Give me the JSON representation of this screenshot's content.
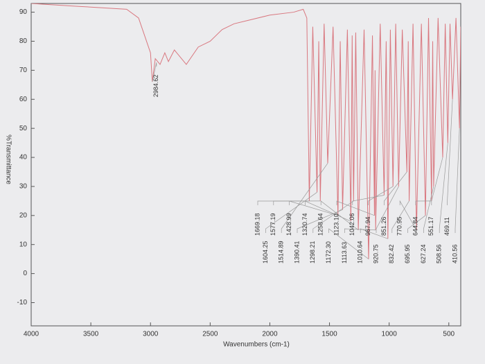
{
  "chart_data": {
    "type": "line",
    "ylabel": "%Transmittance",
    "xlabel": "Wavenumbers (cm-1)",
    "xlim": [
      4000,
      400
    ],
    "ylim": [
      -18,
      93
    ],
    "xticks": [
      4000,
      3500,
      3000,
      2500,
      2000,
      1500,
      1000,
      500
    ],
    "yticks": [
      -10,
      0,
      10,
      20,
      30,
      40,
      50,
      60,
      70,
      80,
      90
    ],
    "grid": false,
    "x": [
      4000,
      3600,
      3200,
      3100,
      3050,
      3000,
      2984.62,
      2960,
      2920,
      2880,
      2850,
      2800,
      2700,
      2600,
      2500,
      2400,
      2300,
      2200,
      2000,
      1800,
      1720,
      1690,
      1669.18,
      1640,
      1604.25,
      1590,
      1577.19,
      1545,
      1514.89,
      1470,
      1428.99,
      1410,
      1390.41,
      1350,
      1320.74,
      1310,
      1298.21,
      1280,
      1258.64,
      1210,
      1172.3,
      1140,
      1123.1,
      1118,
      1113.63,
      1075,
      1042.06,
      1025,
      1010.64,
      990,
      967.94,
      945,
      920.75,
      890,
      851.26,
      840,
      832.42,
      800,
      770.95,
      730,
      695.95,
      670,
      644.84,
      635,
      627.24,
      590,
      551.17,
      530,
      508.56,
      490,
      469.11,
      440,
      410.56,
      400
    ],
    "series": [
      {
        "color": "#d9777f",
        "values": [
          93,
          92,
          91,
          88,
          82,
          76,
          66,
          74,
          72,
          76,
          73,
          77,
          72,
          78,
          80,
          84,
          86,
          87,
          89,
          90,
          91,
          88,
          25,
          85,
          28,
          80,
          25,
          86,
          38,
          85,
          20,
          80,
          22,
          84,
          18,
          82,
          25,
          83,
          15,
          84,
          5,
          82,
          20,
          70,
          15,
          86,
          27,
          80,
          12,
          84,
          30,
          86,
          30,
          84,
          35,
          80,
          25,
          86,
          15,
          86,
          20,
          88,
          25,
          80,
          30,
          88,
          40,
          86,
          45,
          86,
          60,
          88,
          50,
          85
        ]
      }
    ],
    "peaks": [
      {
        "x": 2984.62,
        "label": "2984.62"
      },
      {
        "x": 1669.18,
        "label": "1669.18"
      },
      {
        "x": 1604.25,
        "label": "1604.25"
      },
      {
        "x": 1577.19,
        "label": "1577.19"
      },
      {
        "x": 1514.89,
        "label": "1514.89"
      },
      {
        "x": 1428.99,
        "label": "1428.99"
      },
      {
        "x": 1390.41,
        "label": "1390.41"
      },
      {
        "x": 1320.74,
        "label": "1320.74"
      },
      {
        "x": 1298.21,
        "label": "1298.21"
      },
      {
        "x": 1258.64,
        "label": "1258.64"
      },
      {
        "x": 1172.3,
        "label": "1172.30"
      },
      {
        "x": 1123.1,
        "label": "1123.10"
      },
      {
        "x": 1113.63,
        "label": "1113.63"
      },
      {
        "x": 1042.06,
        "label": "1042.06"
      },
      {
        "x": 1010.64,
        "label": "1010.64"
      },
      {
        "x": 967.94,
        "label": "967.94"
      },
      {
        "x": 920.75,
        "label": "920.75"
      },
      {
        "x": 851.26,
        "label": "851.26"
      },
      {
        "x": 832.42,
        "label": "832.42"
      },
      {
        "x": 770.95,
        "label": "770.95"
      },
      {
        "x": 695.95,
        "label": "695.95"
      },
      {
        "x": 644.84,
        "label": "644.84"
      },
      {
        "x": 627.24,
        "label": "627.24"
      },
      {
        "x": 551.17,
        "label": "551.17"
      },
      {
        "x": 508.56,
        "label": "508.56"
      },
      {
        "x": 469.11,
        "label": "469.11"
      },
      {
        "x": 410.56,
        "label": "410.56"
      }
    ]
  }
}
